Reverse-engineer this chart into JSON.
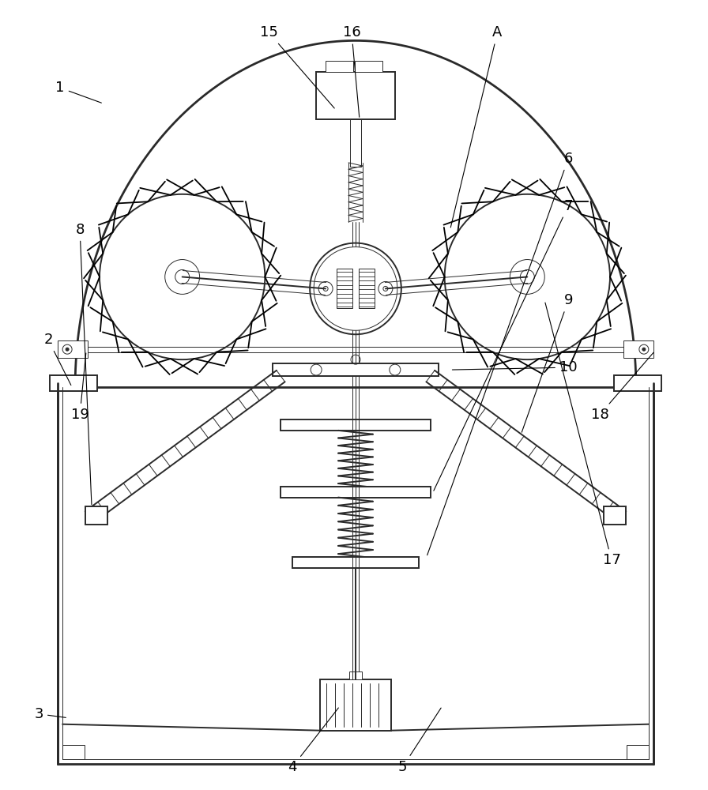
{
  "bg_color": "#ffffff",
  "lc": "#2a2a2a",
  "lw": 1.4,
  "lw_thin": 0.7,
  "lw_thick": 2.0,
  "lw_med": 1.0
}
